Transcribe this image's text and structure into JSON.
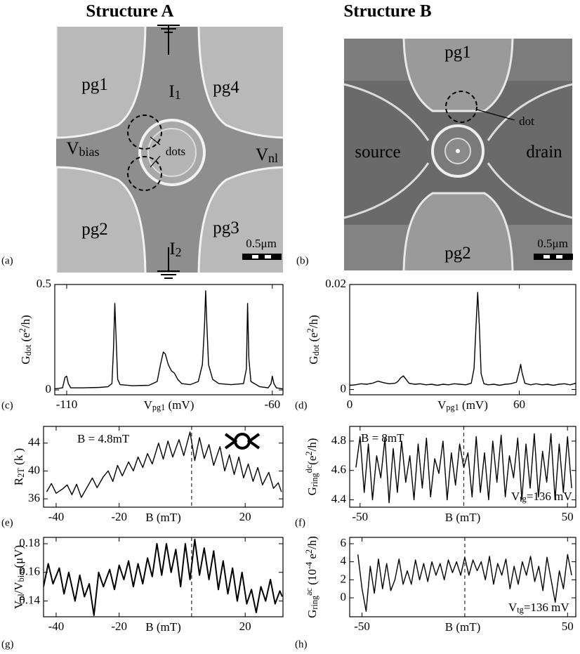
{
  "micrographs": [
    {
      "label": "(a)",
      "title": "Structure A",
      "labels": [
        [
          "pg1"
        ],
        [
          "I",
          {
            "sub": "1"
          }
        ],
        [
          "pg4"
        ],
        [
          "V",
          {
            "sub": "bias"
          }
        ],
        [
          "dots"
        ],
        [
          "V",
          {
            "sub": "nl"
          }
        ],
        [
          "pg2"
        ],
        [
          "I",
          {
            "sub": "2"
          }
        ],
        [
          "pg3"
        ]
      ],
      "scale": "0.5μm"
    },
    {
      "label": "(b)",
      "title": "Structure B",
      "labels": [
        [
          "pg1"
        ],
        [
          "dot"
        ],
        [
          "source"
        ],
        [
          "drain"
        ],
        [
          "pg2"
        ]
      ],
      "scale": "0.5μm"
    }
  ],
  "chart_data": [
    {
      "type": "line",
      "label": "(c)",
      "color": "#000000",
      "ylabel": [
        "G",
        {
          "sub": "dot"
        },
        " (e",
        {
          "sup": "2"
        },
        "/h)"
      ],
      "xlabel": [
        "V",
        {
          "sub": "pg1"
        },
        " (mV)"
      ],
      "xlim": [
        -112.9,
        -57.4
      ],
      "ylim": [
        -0.023,
        0.5
      ],
      "xticks": [
        -110,
        -60
      ],
      "yticks": [
        0,
        0.5
      ],
      "x": [
        -113,
        -111,
        -110.4,
        -110,
        -109.6,
        -109,
        -106,
        -102,
        -100,
        -99,
        -98.6,
        -98.3,
        -98,
        -97.6,
        -97,
        -94,
        -90,
        -88,
        -87.2,
        -86.5,
        -86,
        -85.3,
        -84.5,
        -83.8,
        -83,
        -82,
        -80,
        -78,
        -77,
        -76.5,
        -76.2,
        -75.9,
        -75.5,
        -74.5,
        -73,
        -70,
        -67,
        -66.3,
        -66,
        -65.7,
        -65.2,
        -63,
        -61,
        -60.3,
        -60,
        -59.6,
        -59,
        -57.5
      ],
      "values": [
        0.005,
        0.01,
        0.06,
        0.065,
        0.03,
        0.01,
        0.01,
        0.012,
        0.015,
        0.03,
        0.2,
        0.41,
        0.25,
        0.05,
        0.025,
        0.02,
        0.022,
        0.04,
        0.12,
        0.18,
        0.17,
        0.12,
        0.09,
        0.08,
        0.05,
        0.03,
        0.025,
        0.04,
        0.12,
        0.3,
        0.47,
        0.3,
        0.12,
        0.05,
        0.03,
        0.025,
        0.03,
        0.1,
        0.41,
        0.15,
        0.04,
        0.015,
        0.01,
        0.03,
        0.065,
        0.03,
        0.01,
        0.005
      ]
    },
    {
      "type": "line",
      "label": "(d)",
      "color": "#000000",
      "ylabel": [
        "G",
        {
          "sub": "dot"
        },
        " (e",
        {
          "sup": "2"
        },
        "/h)"
      ],
      "xlabel": [
        "V",
        {
          "sub": "pg1"
        },
        " (mV)"
      ],
      "xlim": [
        0,
        80
      ],
      "ylim": [
        -0.001,
        0.02
      ],
      "xticks": [
        0,
        60
      ],
      "yticks": [
        0,
        0.02
      ],
      "x": [
        0,
        2,
        4,
        6,
        8,
        10,
        12,
        14,
        16,
        17,
        18,
        19,
        20,
        21,
        23,
        25,
        27,
        29,
        31,
        33,
        35,
        37,
        39,
        41,
        43,
        44,
        44.7,
        45.3,
        45.9,
        46.5,
        47.5,
        49,
        51,
        53,
        55,
        57,
        59,
        60,
        60.5,
        61,
        62,
        64,
        66,
        68,
        70,
        72,
        74,
        76,
        78,
        80
      ],
      "values": [
        0.0008,
        0.0009,
        0.0011,
        0.001,
        0.0012,
        0.0016,
        0.0013,
        0.0011,
        0.0012,
        0.0015,
        0.0022,
        0.0026,
        0.0019,
        0.0012,
        0.001,
        0.0011,
        0.0009,
        0.001,
        0.0008,
        0.001,
        0.0009,
        0.0011,
        0.001,
        0.0009,
        0.0012,
        0.004,
        0.012,
        0.0185,
        0.012,
        0.003,
        0.0011,
        0.0009,
        0.001,
        0.0008,
        0.001,
        0.0011,
        0.0014,
        0.0035,
        0.0048,
        0.0032,
        0.0012,
        0.0009,
        0.0011,
        0.0009,
        0.001,
        0.0008,
        0.001,
        0.0011,
        0.0009,
        0.0012
      ]
    },
    {
      "type": "line",
      "label": "(e)",
      "color": "#000000",
      "ylabel": [
        "R",
        {
          "sub": "2T"
        },
        " (k  )"
      ],
      "xlabel": [
        "B (mT)"
      ],
      "annotations": [
        [
          "B = 4.8mT"
        ]
      ],
      "xlim": [
        -44,
        32
      ],
      "ylim": [
        34.8,
        46.4
      ],
      "xticks": [
        -40,
        -20,
        20
      ],
      "yticks": [
        36,
        40,
        44
      ],
      "vline": 3,
      "x": [
        -43,
        -41.5,
        -40,
        -38,
        -36.5,
        -35,
        -33.5,
        -32,
        -30,
        -28.5,
        -27,
        -25,
        -23.5,
        -22,
        -20.5,
        -19,
        -17,
        -15.5,
        -14,
        -12.5,
        -11,
        -9.5,
        -7.5,
        -6,
        -4.5,
        -3,
        -1,
        0.5,
        2.5,
        4,
        5.5,
        7,
        8.5,
        10,
        12,
        13.5,
        15,
        16.5,
        18,
        19.5,
        21,
        22.5,
        24,
        25.5,
        27.5,
        29,
        30.5,
        31.5
      ],
      "values": [
        37.0,
        38.2,
        36.8,
        37.4,
        38.0,
        36.6,
        38.1,
        36.2,
        37.8,
        39.0,
        37.6,
        39.2,
        40.0,
        38.5,
        40.8,
        39.3,
        41.3,
        40.0,
        42.0,
        40.5,
        42.5,
        41.0,
        44.0,
        41.7,
        44.3,
        42.0,
        44.5,
        42.2,
        45.6,
        41.5,
        44.8,
        41.8,
        43.8,
        40.8,
        43.5,
        40.0,
        42.3,
        39.5,
        42.0,
        39.0,
        41.0,
        38.5,
        40.5,
        38.0,
        39.8,
        37.5,
        38.3,
        37.0
      ]
    },
    {
      "type": "line",
      "label": "(f)",
      "color": "#000000",
      "ylabel": [
        "G",
        {
          "sub": "ring"
        },
        {
          "sup": "dc"
        },
        "(e",
        {
          "sup": "2"
        },
        "/h)"
      ],
      "xlabel": [
        "B (mT)"
      ],
      "annotations": [
        [
          "B = 8mT"
        ],
        [
          "V",
          {
            "sub": "tg"
          },
          "=136 mV"
        ]
      ],
      "xlim": [
        -55,
        54
      ],
      "ylim": [
        4.35,
        4.9
      ],
      "xticks": [
        -50,
        50
      ],
      "yticks": [
        4.4,
        4.6,
        4.8
      ],
      "vline": 0,
      "x": [
        -52,
        -50,
        -48,
        -46,
        -44,
        -42,
        -40,
        -38,
        -36,
        -34,
        -32,
        -30,
        -28,
        -26,
        -24,
        -22,
        -20,
        -18,
        -16,
        -14,
        -12,
        -10,
        -8,
        -6,
        -4,
        -2,
        0,
        2,
        4,
        6,
        8,
        10,
        12,
        14,
        16,
        18,
        20,
        22,
        24,
        26,
        28,
        30,
        32,
        34,
        36,
        38,
        40,
        42,
        44,
        46,
        48,
        50,
        52
      ],
      "values": [
        4.62,
        4.83,
        4.45,
        4.78,
        4.4,
        4.7,
        4.55,
        4.82,
        4.38,
        4.75,
        4.45,
        4.8,
        4.52,
        4.7,
        4.4,
        4.78,
        4.48,
        4.82,
        4.42,
        4.68,
        4.58,
        4.8,
        4.4,
        4.72,
        4.5,
        4.78,
        4.62,
        4.72,
        4.42,
        4.83,
        4.45,
        4.72,
        4.4,
        4.8,
        4.52,
        4.84,
        4.42,
        4.7,
        4.55,
        4.82,
        4.4,
        4.78,
        4.48,
        4.85,
        4.42,
        4.73,
        4.52,
        4.85,
        4.4,
        4.78,
        4.45,
        4.83,
        4.48
      ]
    },
    {
      "type": "line",
      "label": "(g)",
      "color": "#000000",
      "ylabel": [
        "V",
        {
          "sub": "nl"
        },
        "/V",
        {
          "sub": "bias"
        },
        "(μV)"
      ],
      "xlabel": [
        "B (mT)"
      ],
      "xlim": [
        -44,
        32
      ],
      "ylim": [
        0.129,
        0.1844
      ],
      "xticks": [
        -40,
        -20,
        20
      ],
      "yticks": [
        0.14,
        0.16,
        0.18
      ],
      "vline": 3,
      "x": [
        -44,
        -42.5,
        -41,
        -39,
        -37.5,
        -36,
        -34,
        -32.5,
        -31,
        -29.5,
        -28,
        -26.5,
        -25,
        -23,
        -21.5,
        -20,
        -18.5,
        -17,
        -15.5,
        -14,
        -12.5,
        -11,
        -9.5,
        -8,
        -6.5,
        -5,
        -3.5,
        -2,
        -0.5,
        1,
        2.5,
        4,
        5.5,
        7,
        8.5,
        10,
        11.5,
        13,
        14.5,
        16,
        17.5,
        19,
        20.5,
        22,
        23.5,
        25,
        26.5,
        28,
        29.5,
        31,
        31.8
      ],
      "values": [
        0.15,
        0.166,
        0.152,
        0.163,
        0.145,
        0.16,
        0.14,
        0.158,
        0.143,
        0.152,
        0.13,
        0.16,
        0.15,
        0.162,
        0.148,
        0.165,
        0.155,
        0.168,
        0.15,
        0.166,
        0.152,
        0.17,
        0.157,
        0.18,
        0.158,
        0.18,
        0.16,
        0.176,
        0.15,
        0.18,
        0.155,
        0.183,
        0.158,
        0.177,
        0.155,
        0.175,
        0.148,
        0.168,
        0.145,
        0.163,
        0.14,
        0.16,
        0.138,
        0.148,
        0.132,
        0.15,
        0.14,
        0.155,
        0.138,
        0.147,
        0.143
      ]
    },
    {
      "type": "line",
      "label": "(h)",
      "color": "#000000",
      "ylabel": [
        "G",
        {
          "sub": "ring"
        },
        {
          "sup": "ac"
        },
        " (10",
        {
          "sup": "-4"
        },
        " e",
        {
          "sup": "2"
        },
        "/h)"
      ],
      "xlabel": [
        "B (mT)"
      ],
      "annotations": [
        [
          "V",
          {
            "sub": "tg"
          },
          "=136 mV"
        ]
      ],
      "xlim": [
        -56,
        54
      ],
      "ylim": [
        -2.1,
        6.7
      ],
      "xticks": [
        -50,
        50
      ],
      "yticks": [
        0,
        2,
        4,
        6
      ],
      "vline": 0,
      "x": [
        -52,
        -50,
        -48,
        -46,
        -44,
        -42,
        -40,
        -38,
        -36,
        -34,
        -32,
        -30,
        -28,
        -26,
        -24,
        -22,
        -20,
        -18,
        -16,
        -14,
        -12,
        -10,
        -8,
        -6,
        -4,
        -2,
        0,
        2,
        4,
        6,
        8,
        10,
        12,
        14,
        16,
        18,
        20,
        22,
        24,
        26,
        28,
        30,
        32,
        34,
        36,
        38,
        40,
        42,
        44,
        46,
        48,
        50,
        52
      ],
      "values": [
        4.8,
        1.0,
        -1.5,
        3.5,
        0.5,
        4.3,
        1.0,
        3.8,
        0.8,
        2.0,
        4.3,
        1.5,
        3.0,
        1.5,
        4.2,
        2.0,
        3.8,
        1.8,
        4.0,
        2.5,
        3.8,
        2.0,
        4.2,
        2.8,
        4.0,
        2.5,
        4.5,
        2.5,
        4.2,
        3.0,
        4.0,
        2.0,
        4.6,
        1.5,
        3.8,
        2.5,
        4.3,
        1.0,
        3.5,
        1.5,
        4.0,
        2.5,
        4.6,
        1.8,
        3.5,
        0.8,
        4.5,
        2.0,
        -0.5,
        3.0,
        1.0,
        4.8,
        2.5
      ]
    }
  ]
}
